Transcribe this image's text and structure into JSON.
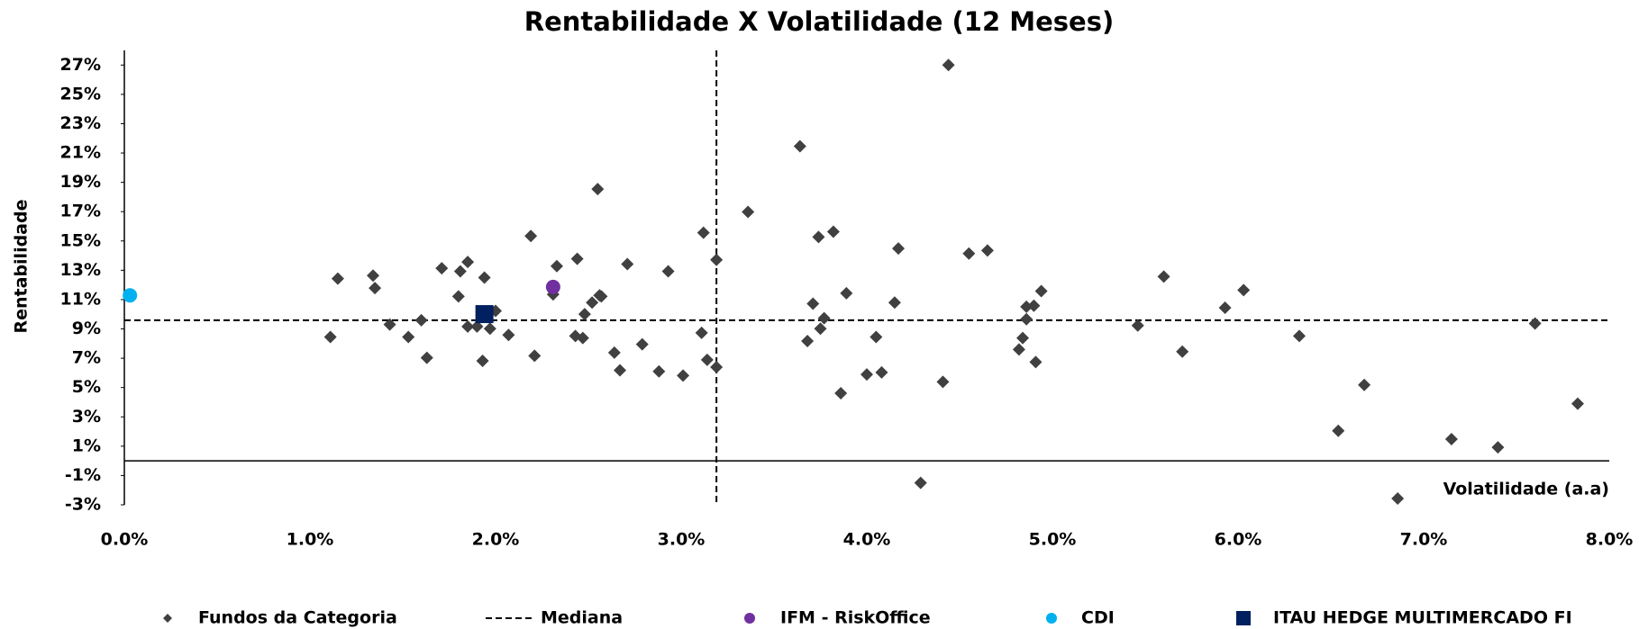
{
  "chart_data": {
    "type": "scatter",
    "title": "Rentabilidade X Volatilidade (12 Meses)",
    "x_label": "Volatilidade (a.a)",
    "y_label": "Rentabilidade",
    "xlim": [
      0,
      8
    ],
    "ylim": [
      -3,
      28
    ],
    "xticks": [
      {
        "value": 0,
        "label": "0.0%"
      },
      {
        "value": 1,
        "label": "1.0%"
      },
      {
        "value": 2,
        "label": "2.0%"
      },
      {
        "value": 3,
        "label": "3.0%"
      },
      {
        "value": 4,
        "label": "4.0%"
      },
      {
        "value": 5,
        "label": "5.0%"
      },
      {
        "value": 6,
        "label": "6.0%"
      },
      {
        "value": 7,
        "label": "7.0%"
      },
      {
        "value": 8,
        "label": "8.0%"
      }
    ],
    "yticks": [
      {
        "value": -3,
        "label": "-3%"
      },
      {
        "value": -1,
        "label": "-1%"
      },
      {
        "value": 1,
        "label": "1%"
      },
      {
        "value": 3,
        "label": "3%"
      },
      {
        "value": 5,
        "label": "5%"
      },
      {
        "value": 7,
        "label": "7%"
      },
      {
        "value": 9,
        "label": "9%"
      },
      {
        "value": 11,
        "label": "11%"
      },
      {
        "value": 13,
        "label": "13%"
      },
      {
        "value": 15,
        "label": "15%"
      },
      {
        "value": 17,
        "label": "17%"
      },
      {
        "value": 19,
        "label": "19%"
      },
      {
        "value": 21,
        "label": "21%"
      },
      {
        "value": 23,
        "label": "23%"
      },
      {
        "value": 25,
        "label": "25%"
      },
      {
        "value": 27,
        "label": "27%"
      }
    ],
    "median": {
      "name": "Mediana",
      "color": "#000000",
      "x": 3.19,
      "y": 9.59
    },
    "series": [
      {
        "name": "Fundos da Categoria",
        "color": "#404040",
        "marker": "diamond",
        "x": [
          1.11,
          1.15,
          1.34,
          1.35,
          1.43,
          1.53,
          1.6,
          1.63,
          1.71,
          1.8,
          1.81,
          1.85,
          1.85,
          1.9,
          1.94,
          1.93,
          1.97,
          2.0,
          2.07,
          2.19,
          2.21,
          2.31,
          2.33,
          2.43,
          2.44,
          2.47,
          2.48,
          2.52,
          2.56,
          2.57,
          2.55,
          2.64,
          2.67,
          2.71,
          2.79,
          2.88,
          2.93,
          3.01,
          3.11,
          3.12,
          3.14,
          3.19,
          3.19,
          3.36,
          3.64,
          3.68,
          3.71,
          3.74,
          3.75,
          3.77,
          3.82,
          3.86,
          3.89,
          4.0,
          4.05,
          4.08,
          4.15,
          4.17,
          4.29,
          4.41,
          4.44,
          4.55,
          4.65,
          4.82,
          4.84,
          4.86,
          4.86,
          4.9,
          4.91,
          4.94,
          5.46,
          5.6,
          5.7,
          5.93,
          6.03,
          6.33,
          6.54,
          6.68,
          6.86,
          7.15,
          7.4,
          7.6,
          7.83
        ],
        "y": [
          8.45,
          12.43,
          12.64,
          11.79,
          9.3,
          8.45,
          9.59,
          7.03,
          13.14,
          11.22,
          12.93,
          13.57,
          9.16,
          9.16,
          12.5,
          6.82,
          9.02,
          10.23,
          8.59,
          15.34,
          7.17,
          11.36,
          13.28,
          8.52,
          13.78,
          8.38,
          10.01,
          10.8,
          11.29,
          11.22,
          18.54,
          7.38,
          6.18,
          13.42,
          7.95,
          6.1,
          12.93,
          5.82,
          8.73,
          15.56,
          6.89,
          6.39,
          13.71,
          16.98,
          21.46,
          8.17,
          10.72,
          15.27,
          9.02,
          9.73,
          15.63,
          4.61,
          11.43,
          5.89,
          8.45,
          6.03,
          10.8,
          14.49,
          -1.5,
          5.39,
          27.0,
          14.14,
          14.35,
          7.6,
          8.38,
          10.51,
          9.66,
          10.58,
          6.74,
          11.58,
          9.23,
          12.57,
          7.45,
          10.44,
          11.65,
          8.52,
          2.05,
          5.18,
          -2.57,
          1.48,
          0.92,
          9.37,
          3.9
        ]
      },
      {
        "name": "IFM - RiskOffice",
        "color": "#7030a0",
        "marker": "circle",
        "x": [
          2.31
        ],
        "y": [
          11.86
        ]
      },
      {
        "name": "CDI",
        "color": "#00b0f0",
        "marker": "circle",
        "x": [
          0.03
        ],
        "y": [
          11.29
        ]
      },
      {
        "name": "ITAU HEDGE MULTIMERCADO FI",
        "color": "#002060",
        "marker": "square",
        "x": [
          1.94
        ],
        "y": [
          10.01
        ]
      }
    ]
  }
}
